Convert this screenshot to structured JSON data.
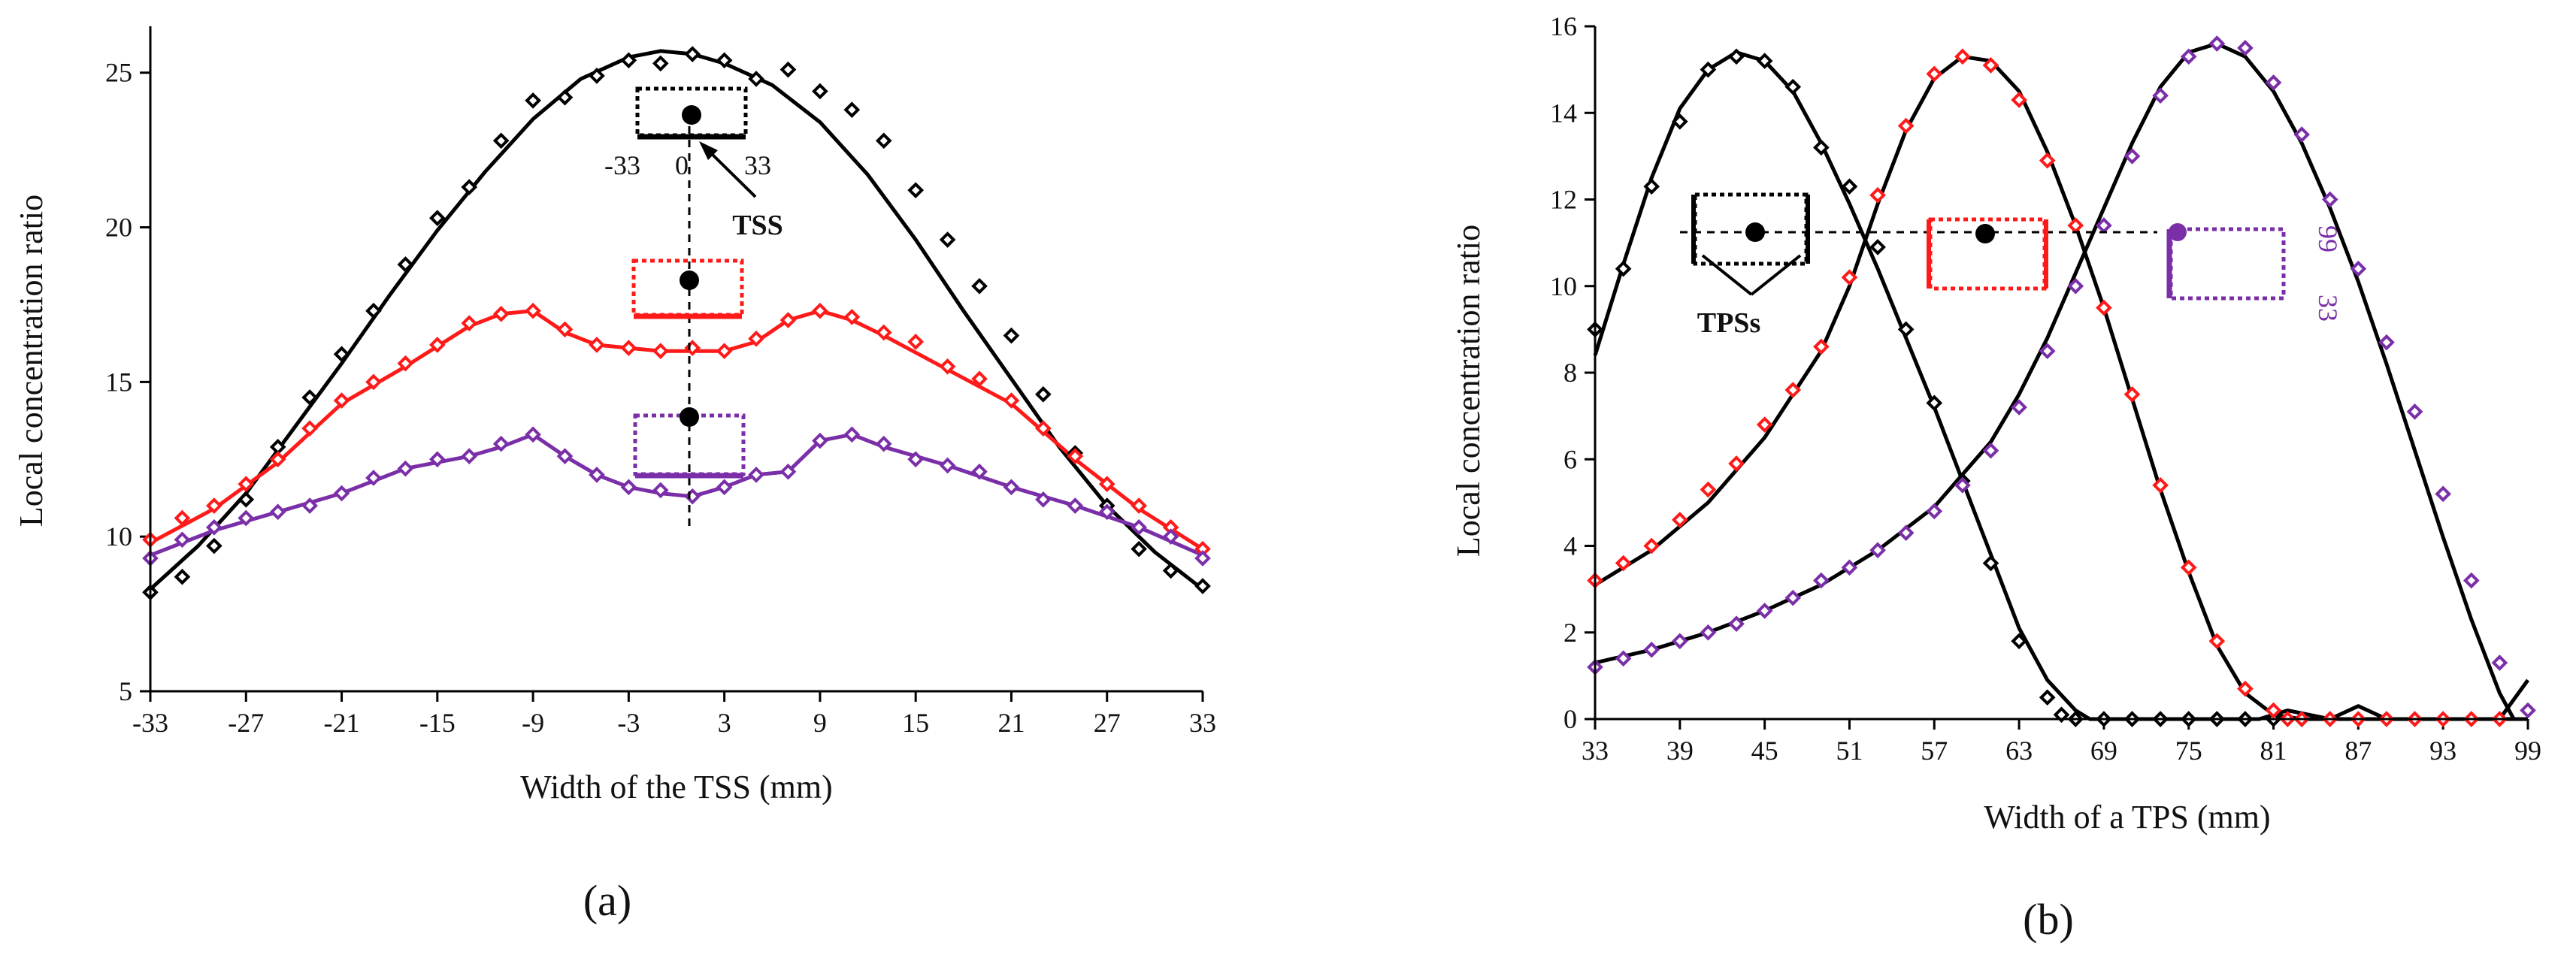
{
  "chart_data": [
    {
      "type": "scatter",
      "panel_label": "(a)",
      "xlabel": "Width of the TSS (mm)",
      "ylabel": "Local concentration ratio",
      "xlim": [
        -33,
        33
      ],
      "ylim": [
        5,
        26.5
      ],
      "xticks": [
        -33,
        -27,
        -21,
        -15,
        -9,
        -3,
        3,
        9,
        15,
        21,
        27,
        33
      ],
      "yticks": [
        5,
        10,
        15,
        20,
        25
      ],
      "series": [
        {
          "name": "black",
          "color": "#000000",
          "x": [
            -33,
            -31,
            -29,
            -27,
            -25,
            -23,
            -21,
            -19,
            -17,
            -15,
            -13,
            -11,
            -9,
            -7,
            -5,
            -3,
            -1,
            1,
            3,
            5,
            7,
            9,
            11,
            13,
            15,
            17,
            19,
            21,
            23,
            25,
            27,
            29,
            31,
            33
          ],
          "y": [
            8.2,
            8.7,
            9.7,
            11.2,
            12.9,
            14.5,
            15.9,
            17.3,
            18.8,
            20.3,
            21.3,
            22.8,
            24.1,
            24.2,
            24.9,
            25.4,
            25.3,
            25.6,
            25.4,
            24.8,
            25.1,
            24.4,
            23.8,
            22.8,
            21.2,
            19.6,
            18.1,
            16.5,
            14.6,
            12.7,
            11.0,
            9.6,
            8.9,
            8.4
          ]
        },
        {
          "name": "red",
          "color": "#ff1a1a",
          "x": [
            -33,
            -31,
            -29,
            -27,
            -25,
            -23,
            -21,
            -19,
            -17,
            -15,
            -13,
            -11,
            -9,
            -7,
            -5,
            -3,
            -1,
            1,
            3,
            5,
            7,
            9,
            11,
            13,
            15,
            17,
            19,
            21,
            23,
            25,
            27,
            29,
            31,
            33
          ],
          "y": [
            9.9,
            10.6,
            11.0,
            11.7,
            12.5,
            13.5,
            14.4,
            15.0,
            15.6,
            16.2,
            16.9,
            17.2,
            17.3,
            16.7,
            16.2,
            16.1,
            16.0,
            16.1,
            16.0,
            16.4,
            17.0,
            17.3,
            17.1,
            16.6,
            16.3,
            15.5,
            15.1,
            14.4,
            13.5,
            12.6,
            11.7,
            11.0,
            10.3,
            9.6
          ]
        },
        {
          "name": "purple",
          "color": "#7a2fa8",
          "x": [
            -33,
            -31,
            -29,
            -27,
            -25,
            -23,
            -21,
            -19,
            -17,
            -15,
            -13,
            -11,
            -9,
            -7,
            -5,
            -3,
            -1,
            1,
            3,
            5,
            7,
            9,
            11,
            13,
            15,
            17,
            19,
            21,
            23,
            25,
            27,
            29,
            31,
            33
          ],
          "y": [
            9.3,
            9.9,
            10.3,
            10.6,
            10.8,
            11.0,
            11.4,
            11.9,
            12.2,
            12.5,
            12.6,
            13.0,
            13.3,
            12.6,
            12.0,
            11.6,
            11.5,
            11.3,
            11.6,
            12.0,
            12.1,
            13.1,
            13.3,
            13.0,
            12.5,
            12.3,
            12.1,
            11.6,
            11.2,
            11.0,
            10.8,
            10.3,
            10.0,
            9.3
          ]
        }
      ],
      "fits": [
        {
          "name": "black-fit",
          "color": "#000000",
          "x": [
            -33,
            -30,
            -27,
            -24,
            -21,
            -18,
            -15,
            -12,
            -9,
            -6,
            -3,
            -1,
            1,
            3,
            6,
            9,
            12,
            15,
            18,
            21,
            24,
            27,
            30,
            33
          ],
          "y": [
            8.3,
            9.7,
            11.4,
            13.5,
            15.6,
            17.8,
            19.9,
            21.8,
            23.5,
            24.8,
            25.5,
            25.7,
            25.6,
            25.3,
            24.6,
            23.4,
            21.7,
            19.6,
            17.3,
            15.1,
            12.9,
            11.0,
            9.5,
            8.3
          ]
        },
        {
          "name": "red-fit",
          "color": "#ff1a1a",
          "x": [
            -33,
            -29,
            -25,
            -21,
            -17,
            -13,
            -11,
            -9,
            -7,
            -5,
            -3,
            -1,
            1,
            3,
            5,
            7,
            9,
            11,
            13,
            17,
            21,
            25,
            29,
            33
          ],
          "y": [
            9.8,
            10.9,
            12.4,
            14.3,
            15.5,
            16.8,
            17.2,
            17.3,
            16.6,
            16.2,
            16.1,
            16.0,
            16.0,
            16.0,
            16.3,
            17.0,
            17.3,
            17.0,
            16.5,
            15.4,
            14.3,
            12.5,
            10.9,
            9.6
          ]
        },
        {
          "name": "purple-fit",
          "color": "#7a2fa8",
          "x": [
            -33,
            -29,
            -25,
            -21,
            -17,
            -13,
            -11,
            -9,
            -7,
            -5,
            -3,
            -1,
            1,
            3,
            5,
            7,
            9,
            11,
            13,
            17,
            21,
            25,
            29,
            33
          ],
          "y": [
            9.4,
            10.2,
            10.8,
            11.4,
            12.2,
            12.6,
            12.9,
            13.3,
            12.6,
            12.0,
            11.6,
            11.4,
            11.3,
            11.6,
            12.0,
            12.1,
            13.1,
            13.3,
            12.9,
            12.3,
            11.6,
            11.0,
            10.3,
            9.4
          ]
        }
      ],
      "annotations": {
        "tss_labels": [
          "-33",
          "0",
          "33"
        ],
        "tss_name": "TSS"
      }
    },
    {
      "type": "scatter",
      "panel_label": "(b)",
      "xlabel": "Width of a TPS (mm)",
      "ylabel": "Local concentration ratio",
      "xlim": [
        33,
        99
      ],
      "ylim": [
        0,
        16
      ],
      "xticks": [
        33,
        39,
        45,
        51,
        57,
        63,
        69,
        75,
        81,
        87,
        93,
        99
      ],
      "yticks": [
        0,
        2,
        4,
        6,
        8,
        10,
        12,
        14,
        16
      ],
      "series": [
        {
          "name": "black",
          "color": "#000000",
          "x": [
            33,
            35,
            37,
            39,
            41,
            43,
            45,
            47,
            49,
            51,
            53,
            55,
            57,
            59,
            61,
            63,
            65,
            66,
            67,
            69,
            71,
            73,
            75,
            77,
            79,
            81,
            83
          ],
          "y": [
            9.0,
            10.4,
            12.3,
            13.8,
            15.0,
            15.3,
            15.2,
            14.6,
            13.2,
            12.3,
            10.9,
            9.0,
            7.3,
            5.5,
            3.6,
            1.8,
            0.5,
            0.1,
            0,
            0,
            0,
            0,
            0,
            0,
            0,
            0,
            0
          ]
        },
        {
          "name": "red",
          "color": "#ff1a1a",
          "x": [
            33,
            35,
            37,
            39,
            41,
            43,
            45,
            47,
            49,
            51,
            53,
            55,
            57,
            59,
            61,
            63,
            65,
            67,
            69,
            71,
            73,
            75,
            77,
            79,
            81,
            82,
            83,
            85,
            87,
            89,
            91,
            93,
            95,
            97
          ],
          "y": [
            3.2,
            3.6,
            4.0,
            4.6,
            5.3,
            5.9,
            6.8,
            7.6,
            8.6,
            10.2,
            12.1,
            13.7,
            14.9,
            15.3,
            15.1,
            14.3,
            12.9,
            11.4,
            9.5,
            7.5,
            5.4,
            3.5,
            1.8,
            0.7,
            0.2,
            0,
            0,
            0,
            0,
            0,
            0,
            0,
            0,
            0
          ]
        },
        {
          "name": "purple",
          "color": "#7a2fa8",
          "x": [
            33,
            35,
            37,
            39,
            41,
            43,
            45,
            47,
            49,
            51,
            53,
            55,
            57,
            59,
            61,
            63,
            65,
            67,
            69,
            71,
            73,
            75,
            77,
            79,
            81,
            83,
            85,
            87,
            89,
            91,
            93,
            95,
            97,
            99
          ],
          "y": [
            1.2,
            1.4,
            1.6,
            1.8,
            2.0,
            2.2,
            2.5,
            2.8,
            3.2,
            3.5,
            3.9,
            4.3,
            4.8,
            5.4,
            6.2,
            7.2,
            8.5,
            10.0,
            11.4,
            13.0,
            14.4,
            15.3,
            15.6,
            15.5,
            14.7,
            13.5,
            12.0,
            10.4,
            8.7,
            7.1,
            5.2,
            3.2,
            1.3,
            0.2
          ]
        }
      ],
      "fits": [
        {
          "name": "black-fit",
          "color": "#000000",
          "x": [
            33,
            35,
            37,
            39,
            41,
            43,
            45,
            47,
            49,
            51,
            53,
            55,
            57,
            59,
            61,
            63,
            65,
            67,
            68,
            70,
            75,
            80,
            82,
            85,
            87,
            89,
            92,
            95,
            97,
            99
          ],
          "y": [
            8.4,
            10.5,
            12.5,
            14.1,
            15.0,
            15.4,
            15.2,
            14.5,
            13.3,
            11.9,
            10.4,
            8.8,
            7.2,
            5.5,
            3.8,
            2.1,
            0.9,
            0.2,
            0,
            0,
            0,
            0,
            0.2,
            0,
            0.3,
            0,
            0,
            0,
            0,
            0.9
          ]
        },
        {
          "name": "red-fit",
          "color": "#000000",
          "x": [
            33,
            37,
            41,
            45,
            49,
            51,
            53,
            55,
            57,
            59,
            61,
            63,
            65,
            67,
            69,
            71,
            73,
            75,
            77,
            79,
            81,
            83,
            87,
            93,
            99
          ],
          "y": [
            3.1,
            3.9,
            5.0,
            6.5,
            8.5,
            10.0,
            11.9,
            13.6,
            14.8,
            15.3,
            15.2,
            14.5,
            13.1,
            11.4,
            9.5,
            7.4,
            5.3,
            3.4,
            1.7,
            0.6,
            0.1,
            0,
            0,
            0,
            0
          ]
        },
        {
          "name": "purple-fit",
          "color": "#000000",
          "x": [
            33,
            37,
            41,
            45,
            49,
            53,
            57,
            61,
            63,
            65,
            67,
            69,
            71,
            73,
            75,
            77,
            79,
            81,
            83,
            85,
            87,
            89,
            91,
            93,
            95,
            97,
            98
          ],
          "y": [
            1.3,
            1.6,
            2.0,
            2.5,
            3.1,
            3.9,
            4.9,
            6.4,
            7.5,
            8.8,
            10.3,
            11.8,
            13.3,
            14.6,
            15.4,
            15.6,
            15.3,
            14.5,
            13.3,
            11.8,
            10.1,
            8.2,
            6.2,
            4.2,
            2.3,
            0.6,
            0
          ]
        }
      ],
      "annotations": {
        "tps_name": "TPSs",
        "purple_labels": [
          "99",
          "33"
        ]
      }
    }
  ]
}
